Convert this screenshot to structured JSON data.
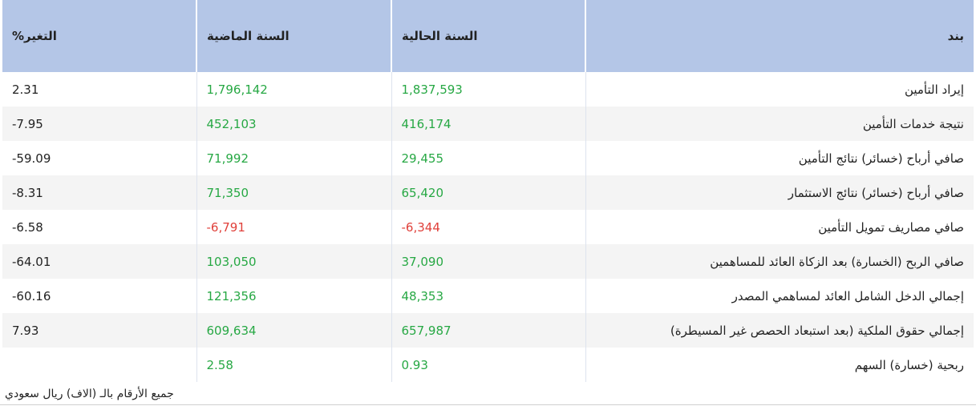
{
  "table": {
    "headers": {
      "item": "بند",
      "current": "السنة الحالية",
      "previous": "السنة الماضية",
      "change": "التغير%"
    },
    "rows": [
      {
        "item": "إيراد التأمين",
        "current": "1,837,593",
        "previous": "1,796,142",
        "change": "2.31",
        "current_color": "pos",
        "previous_color": "pos"
      },
      {
        "item": "نتيجة خدمات التأمين",
        "current": "416,174",
        "previous": "452,103",
        "change": "7.95-",
        "current_color": "pos",
        "previous_color": "pos"
      },
      {
        "item": "صافي أرباح (خسائر) نتائج التأمين",
        "current": "29,455",
        "previous": "71,992",
        "change": "59.09-",
        "current_color": "pos",
        "previous_color": "pos"
      },
      {
        "item": "صافي أرباح (خسائر) نتائج الاستثمار",
        "current": "65,420",
        "previous": "71,350",
        "change": "8.31-",
        "current_color": "pos",
        "previous_color": "pos"
      },
      {
        "item": "صافي مصاريف تمويل التأمين",
        "current": "6,344-",
        "previous": "6,791-",
        "change": "6.58-",
        "current_color": "neg",
        "previous_color": "neg"
      },
      {
        "item": "صافي الربح (الخسارة) بعد الزكاة العائد للمساهمين",
        "current": "37,090",
        "previous": "103,050",
        "change": "64.01-",
        "current_color": "pos",
        "previous_color": "pos"
      },
      {
        "item": "إجمالي الدخل الشامل العائد لمساهمي المصدر",
        "current": "48,353",
        "previous": "121,356",
        "change": "60.16-",
        "current_color": "pos",
        "previous_color": "pos"
      },
      {
        "item": "إجمالي حقوق الملكية (بعد استبعاد الحصص غير المسيطرة)",
        "current": "657,987",
        "previous": "609,634",
        "change": "7.93",
        "current_color": "pos",
        "previous_color": "pos"
      },
      {
        "item": "ربحية (خسارة) السهم",
        "current": "0.93",
        "previous": "2.58",
        "change": "",
        "current_color": "pos",
        "previous_color": "pos"
      }
    ]
  },
  "footer": {
    "note": "جميع الأرقام بالـ (الاف) ريال سعودي"
  },
  "colors": {
    "header_bg": "#b4c6e7",
    "positive": "#27a844",
    "negative": "#e0403a"
  }
}
